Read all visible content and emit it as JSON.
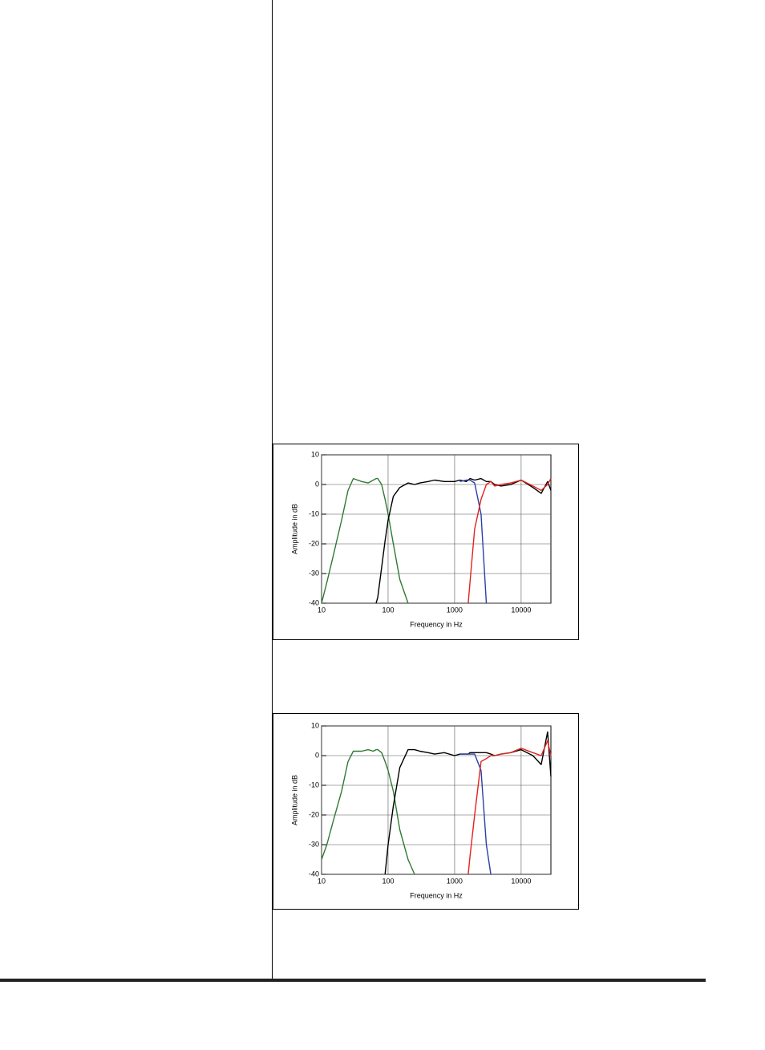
{
  "chart_data": [
    {
      "type": "line",
      "xscale": "log",
      "ylabel": "Amplitude in dB",
      "xlabel": "Frequency in Hz",
      "xlim": [
        10,
        28000
      ],
      "xticks": [
        10,
        100,
        1000,
        10000
      ],
      "ylim": [
        -40,
        10
      ],
      "yticks": [
        10,
        0,
        -10,
        -20,
        -30,
        -40
      ],
      "grid": true,
      "x": [
        10,
        12,
        15,
        20,
        25,
        30,
        40,
        50,
        60,
        66,
        70,
        80,
        90,
        100,
        120,
        150,
        200,
        250,
        300,
        400,
        500,
        700,
        1000,
        1200,
        1500,
        1600,
        1700,
        2000,
        2500,
        3000,
        3500,
        4000,
        5000,
        7000,
        10000,
        15000,
        20000,
        25000,
        28000
      ],
      "series": [
        {
          "color": "#2f7a34",
          "values": [
            -40,
            -33,
            -24,
            -12,
            -2,
            2,
            1,
            0.5,
            1.5,
            2,
            2,
            0,
            -5,
            -10,
            -20,
            -32,
            -40,
            null,
            null,
            null,
            null,
            null,
            null,
            null,
            null,
            null,
            null,
            null,
            null,
            null,
            null,
            null,
            null,
            null,
            null,
            null,
            null,
            null,
            null
          ]
        },
        {
          "color": "#000000",
          "values": [
            null,
            null,
            null,
            null,
            null,
            null,
            null,
            null,
            null,
            -40,
            -38,
            -28,
            -19,
            -12,
            -4,
            -1,
            0.5,
            0,
            0.5,
            1,
            1.5,
            1,
            1,
            1.5,
            1,
            1.5,
            2,
            1.5,
            2,
            1,
            1,
            0,
            -0.5,
            0,
            1.5,
            -1,
            -3,
            1,
            -2
          ]
        },
        {
          "color": "#2b3fa8",
          "values": [
            null,
            null,
            null,
            null,
            null,
            null,
            null,
            null,
            null,
            null,
            null,
            null,
            null,
            null,
            null,
            null,
            null,
            null,
            null,
            null,
            null,
            null,
            null,
            1,
            1.5,
            1.5,
            1.5,
            0.5,
            -10,
            -40,
            null,
            null,
            null,
            null,
            null,
            null,
            null,
            null,
            null
          ]
        },
        {
          "color": "#e0231c",
          "values": [
            null,
            null,
            null,
            null,
            null,
            null,
            null,
            null,
            null,
            null,
            null,
            null,
            null,
            null,
            null,
            null,
            null,
            null,
            null,
            null,
            null,
            null,
            null,
            null,
            null,
            -40,
            -33,
            -15,
            -5,
            0,
            1,
            -0.5,
            0,
            0.5,
            1.5,
            -0.5,
            -2,
            0,
            2
          ]
        }
      ]
    },
    {
      "type": "line",
      "xscale": "log",
      "ylabel": "Amplitude in dB",
      "xlabel": "Frequency in Hz",
      "xlim": [
        10,
        28000
      ],
      "xticks": [
        10,
        100,
        1000,
        10000
      ],
      "ylim": [
        -40,
        10
      ],
      "yticks": [
        10,
        0,
        -10,
        -20,
        -30,
        -40
      ],
      "grid": true,
      "x": [
        10,
        12,
        15,
        20,
        25,
        30,
        40,
        50,
        60,
        66,
        70,
        80,
        90,
        100,
        120,
        150,
        200,
        250,
        300,
        400,
        500,
        700,
        1000,
        1200,
        1500,
        1600,
        1700,
        2000,
        2500,
        3000,
        3500,
        4000,
        5000,
        7000,
        10000,
        15000,
        20000,
        25000,
        28000
      ],
      "series": [
        {
          "color": "#2f7a34",
          "values": [
            -35,
            -30,
            -22,
            -12,
            -2,
            1.5,
            1.5,
            2,
            1.5,
            2,
            2,
            1,
            -2,
            -5,
            -12,
            -25,
            -35,
            -40,
            null,
            null,
            null,
            null,
            null,
            null,
            null,
            null,
            null,
            null,
            null,
            null,
            null,
            null,
            null,
            null,
            null,
            null,
            null,
            null,
            null
          ]
        },
        {
          "color": "#000000",
          "values": [
            null,
            null,
            null,
            null,
            null,
            null,
            null,
            null,
            null,
            null,
            null,
            null,
            -40,
            -30,
            -17,
            -4,
            2,
            2,
            1.5,
            1,
            0.5,
            1,
            0,
            0.5,
            0.5,
            0.5,
            1,
            1,
            1,
            1,
            0.5,
            0,
            0.5,
            1,
            2,
            0,
            -3,
            8,
            -7
          ]
        },
        {
          "color": "#2b3fa8",
          "values": [
            null,
            null,
            null,
            null,
            null,
            null,
            null,
            null,
            null,
            null,
            null,
            null,
            null,
            null,
            null,
            null,
            null,
            null,
            null,
            null,
            null,
            null,
            null,
            0.5,
            0.5,
            0.5,
            0.5,
            0.5,
            -5,
            -30,
            -40,
            null,
            null,
            null,
            null,
            null,
            null,
            null,
            null
          ]
        },
        {
          "color": "#e0231c",
          "values": [
            null,
            null,
            null,
            null,
            null,
            null,
            null,
            null,
            null,
            null,
            null,
            null,
            null,
            null,
            null,
            null,
            null,
            null,
            null,
            null,
            null,
            null,
            null,
            null,
            null,
            -40,
            -34,
            -20,
            -2,
            -1,
            0,
            0,
            0.5,
            1,
            2.5,
            1,
            0,
            5,
            0
          ]
        }
      ]
    }
  ]
}
